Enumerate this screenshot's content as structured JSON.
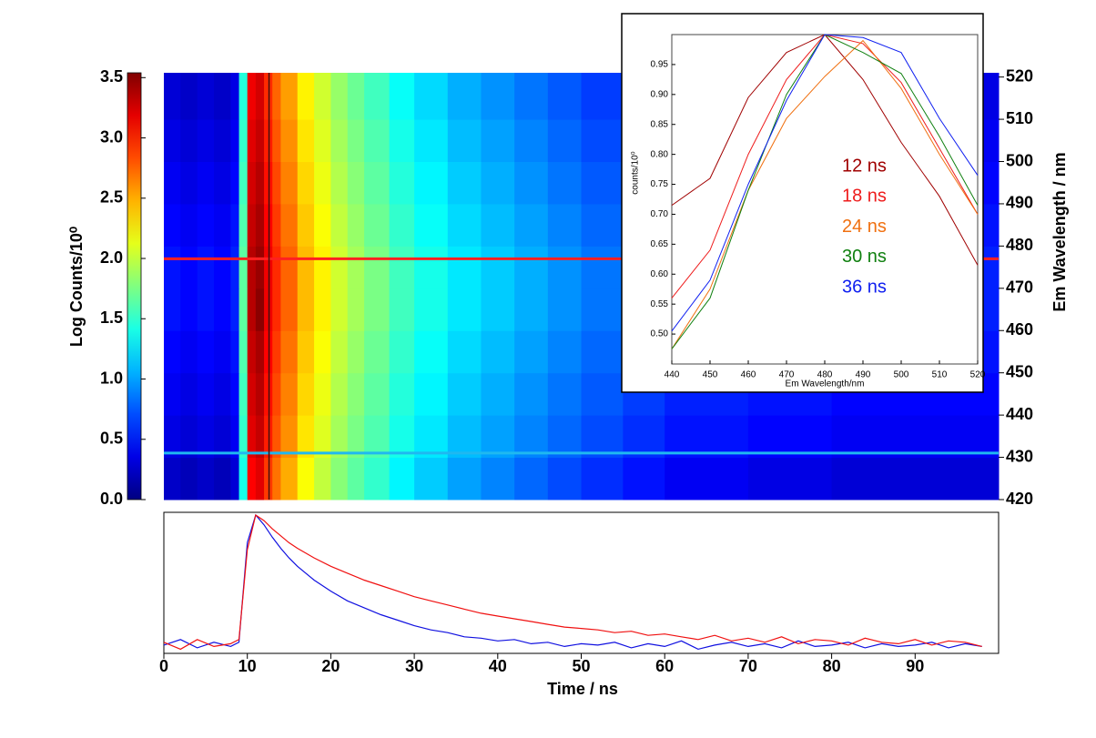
{
  "chart_data": [
    {
      "type": "heatmap",
      "colorbar_label": "Log Counts/10⁰",
      "ylabel": "Em Wavelength / nm",
      "x": [
        0,
        2,
        4,
        6,
        8,
        9,
        10,
        11,
        12,
        13,
        14,
        16,
        18,
        20,
        22,
        24,
        27,
        30,
        34,
        38,
        42,
        46,
        50,
        55,
        60,
        70,
        80,
        90,
        100
      ],
      "y": [
        420,
        430,
        440,
        450,
        460,
        470,
        480,
        490,
        500,
        510,
        521
      ],
      "xlim": [
        0,
        100
      ],
      "ylim": [
        420,
        521
      ],
      "yticks": [
        420,
        430,
        440,
        450,
        460,
        470,
        480,
        490,
        500,
        510,
        520
      ],
      "clim": [
        0,
        3.54
      ],
      "cticks": [
        {
          "value": 0,
          "label": "0.0"
        },
        {
          "value": 0.5,
          "label": "0.5"
        },
        {
          "value": 1,
          "label": "1.0"
        },
        {
          "value": 1.5,
          "label": "1.5"
        },
        {
          "value": 2,
          "label": "2.0"
        },
        {
          "value": 2.5,
          "label": "2.5"
        },
        {
          "value": 3,
          "label": "3.0"
        },
        {
          "value": 3.5,
          "label": "3.5"
        }
      ],
      "colormap": "jet",
      "values": [
        [
          0.25,
          0.2,
          0.25,
          0.2,
          0.3,
          1.4,
          3.1,
          3.2,
          2.9,
          2.7,
          2.5,
          2.2,
          2.0,
          1.8,
          1.65,
          1.5,
          1.3,
          1.15,
          1.0,
          0.9,
          0.8,
          0.7,
          0.6,
          0.5,
          0.4,
          0.35,
          0.3,
          0.3
        ],
        [
          0.35,
          0.3,
          0.35,
          0.3,
          0.4,
          1.5,
          3.2,
          3.3,
          3.0,
          2.8,
          2.6,
          2.3,
          2.1,
          1.9,
          1.75,
          1.6,
          1.4,
          1.25,
          1.1,
          1.0,
          0.9,
          0.8,
          0.7,
          0.6,
          0.5,
          0.45,
          0.4,
          0.4
        ],
        [
          0.4,
          0.35,
          0.4,
          0.35,
          0.45,
          1.55,
          3.25,
          3.35,
          3.05,
          2.85,
          2.65,
          2.35,
          2.15,
          1.95,
          1.8,
          1.65,
          1.45,
          1.3,
          1.15,
          1.05,
          0.95,
          0.85,
          0.75,
          0.65,
          0.55,
          0.5,
          0.45,
          0.45
        ],
        [
          0.45,
          0.4,
          0.45,
          0.4,
          0.5,
          1.6,
          3.3,
          3.4,
          3.1,
          2.9,
          2.7,
          2.4,
          2.2,
          2.0,
          1.85,
          1.7,
          1.5,
          1.35,
          1.2,
          1.1,
          1.0,
          0.9,
          0.8,
          0.7,
          0.6,
          0.55,
          0.5,
          0.5
        ],
        [
          0.5,
          0.45,
          0.5,
          0.45,
          0.55,
          1.65,
          3.35,
          3.5,
          3.15,
          2.95,
          2.75,
          2.45,
          2.25,
          2.05,
          1.9,
          1.75,
          1.55,
          1.4,
          1.25,
          1.15,
          1.05,
          0.95,
          0.85,
          0.75,
          0.65,
          0.6,
          0.55,
          0.55
        ],
        [
          0.5,
          0.45,
          0.5,
          0.45,
          0.55,
          1.65,
          3.35,
          3.45,
          3.15,
          2.95,
          2.75,
          2.45,
          2.25,
          2.05,
          1.9,
          1.75,
          1.55,
          1.4,
          1.25,
          1.15,
          1.05,
          0.95,
          0.85,
          0.75,
          0.65,
          0.6,
          0.55,
          0.55
        ],
        [
          0.45,
          0.4,
          0.45,
          0.4,
          0.5,
          1.6,
          3.3,
          3.4,
          3.1,
          2.9,
          2.7,
          2.4,
          2.2,
          2.0,
          1.85,
          1.7,
          1.5,
          1.35,
          1.2,
          1.1,
          1.0,
          0.9,
          0.8,
          0.7,
          0.6,
          0.55,
          0.5,
          0.5
        ],
        [
          0.4,
          0.35,
          0.4,
          0.35,
          0.45,
          1.55,
          3.25,
          3.35,
          3.05,
          2.85,
          2.65,
          2.35,
          2.15,
          1.95,
          1.8,
          1.65,
          1.45,
          1.3,
          1.15,
          1.05,
          0.95,
          0.85,
          0.75,
          0.65,
          0.55,
          0.5,
          0.45,
          0.45
        ],
        [
          0.35,
          0.3,
          0.35,
          0.3,
          0.4,
          1.5,
          3.2,
          3.3,
          3.0,
          2.8,
          2.6,
          2.3,
          2.1,
          1.9,
          1.75,
          1.6,
          1.4,
          1.25,
          1.1,
          1.0,
          0.9,
          0.8,
          0.7,
          0.6,
          0.5,
          0.45,
          0.4,
          0.4
        ],
        [
          0.3,
          0.25,
          0.3,
          0.25,
          0.35,
          1.45,
          3.15,
          3.25,
          2.95,
          2.75,
          2.55,
          2.25,
          2.05,
          1.85,
          1.7,
          1.55,
          1.35,
          1.2,
          1.05,
          0.95,
          0.85,
          0.75,
          0.65,
          0.55,
          0.45,
          0.4,
          0.35,
          0.35
        ]
      ],
      "cursors": [
        {
          "axis": "y",
          "value": 477,
          "color": "#ff2020"
        },
        {
          "axis": "y",
          "value": 431,
          "color": "#20b8f0"
        },
        {
          "axis": "x",
          "value": 12.6,
          "color": "#401010"
        }
      ]
    },
    {
      "type": "line",
      "xlabel": "Time / ns",
      "x": [
        0,
        2,
        4,
        6,
        8,
        9,
        10,
        11,
        12,
        13,
        14,
        15,
        16,
        18,
        20,
        22,
        24,
        26,
        28,
        30,
        32,
        34,
        36,
        38,
        40,
        42,
        44,
        46,
        48,
        50,
        52,
        54,
        56,
        58,
        60,
        62,
        64,
        66,
        68,
        70,
        72,
        74,
        76,
        78,
        80,
        82,
        84,
        86,
        88,
        90,
        92,
        94,
        96,
        98
      ],
      "xlim": [
        0,
        100
      ],
      "ylim": [
        0,
        1.02
      ],
      "xticks": [
        0,
        10,
        20,
        30,
        40,
        50,
        60,
        70,
        80,
        90
      ],
      "series": [
        {
          "color": "#1010e0",
          "values": [
            0.06,
            0.1,
            0.04,
            0.08,
            0.05,
            0.08,
            0.8,
            1.0,
            0.93,
            0.84,
            0.76,
            0.69,
            0.63,
            0.53,
            0.45,
            0.38,
            0.33,
            0.28,
            0.24,
            0.2,
            0.17,
            0.15,
            0.12,
            0.11,
            0.09,
            0.1,
            0.07,
            0.08,
            0.05,
            0.07,
            0.06,
            0.08,
            0.04,
            0.07,
            0.05,
            0.09,
            0.03,
            0.06,
            0.08,
            0.05,
            0.07,
            0.04,
            0.09,
            0.05,
            0.06,
            0.08,
            0.04,
            0.07,
            0.05,
            0.06,
            0.08,
            0.04,
            0.07,
            0.05
          ]
        },
        {
          "color": "#f01010",
          "values": [
            0.08,
            0.03,
            0.1,
            0.05,
            0.07,
            0.1,
            0.75,
            1.0,
            0.96,
            0.9,
            0.85,
            0.8,
            0.76,
            0.69,
            0.63,
            0.58,
            0.53,
            0.49,
            0.45,
            0.41,
            0.38,
            0.35,
            0.32,
            0.29,
            0.27,
            0.25,
            0.23,
            0.21,
            0.19,
            0.18,
            0.17,
            0.15,
            0.16,
            0.13,
            0.14,
            0.12,
            0.1,
            0.13,
            0.09,
            0.11,
            0.08,
            0.12,
            0.07,
            0.1,
            0.09,
            0.06,
            0.11,
            0.08,
            0.07,
            0.1,
            0.06,
            0.09,
            0.08,
            0.05
          ]
        }
      ]
    },
    {
      "type": "line",
      "xlabel": "Em Wavelength/nm",
      "ylabel": "counts/10⁰",
      "x": [
        440,
        450,
        460,
        470,
        480,
        490,
        500,
        510,
        520
      ],
      "xlim": [
        440,
        520
      ],
      "ylim": [
        0.45,
        1.0
      ],
      "xticks": [
        440,
        450,
        460,
        470,
        480,
        490,
        500,
        510,
        520
      ],
      "yticks": [
        {
          "value": 0.5,
          "label": "0.50"
        },
        {
          "value": 0.55,
          "label": "0.55"
        },
        {
          "value": 0.6,
          "label": "0.60"
        },
        {
          "value": 0.65,
          "label": "0.65"
        },
        {
          "value": 0.7,
          "label": "0.70"
        },
        {
          "value": 0.75,
          "label": "0.75"
        },
        {
          "value": 0.8,
          "label": "0.80"
        },
        {
          "value": 0.85,
          "label": "0.85"
        },
        {
          "value": 0.9,
          "label": "0.90"
        },
        {
          "value": 0.95,
          "label": "0.95"
        }
      ],
      "series": [
        {
          "name": "12 ns",
          "color": "#a00000",
          "values": [
            0.715,
            0.76,
            0.895,
            0.97,
            1.0,
            0.925,
            0.82,
            0.73,
            0.615
          ]
        },
        {
          "name": "18 ns",
          "color": "#ee1c1c",
          "values": [
            0.56,
            0.64,
            0.8,
            0.925,
            1.0,
            0.985,
            0.92,
            0.81,
            0.7
          ]
        },
        {
          "name": "24 ns",
          "color": "#f07010",
          "values": [
            0.475,
            0.575,
            0.74,
            0.86,
            0.93,
            0.99,
            0.91,
            0.8,
            0.7
          ]
        },
        {
          "name": "30 ns",
          "color": "#108010",
          "values": [
            0.475,
            0.56,
            0.74,
            0.9,
            1.0,
            0.97,
            0.935,
            0.83,
            0.715
          ]
        },
        {
          "name": "36 ns",
          "color": "#1020f0",
          "values": [
            0.505,
            0.59,
            0.75,
            0.89,
            1.0,
            0.995,
            0.97,
            0.86,
            0.765
          ]
        }
      ]
    }
  ]
}
